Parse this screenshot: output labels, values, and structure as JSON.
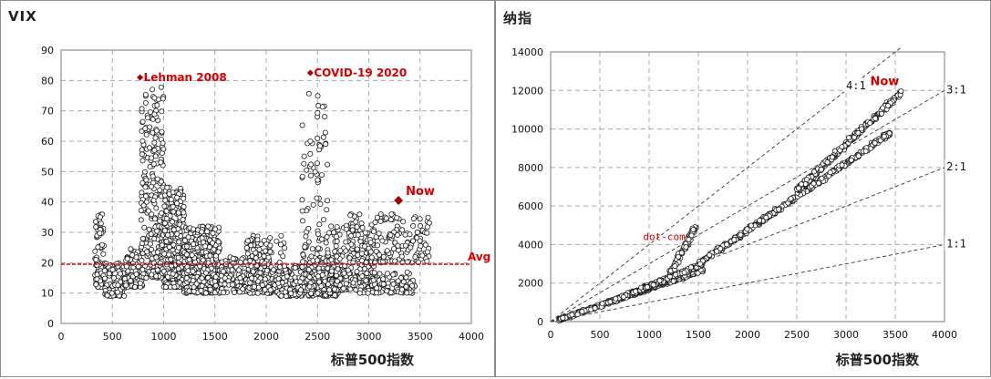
{
  "charts": {
    "vix": {
      "y_title": "VIX",
      "x_title": "标普500指数",
      "annotations": {
        "lehman": "Lehman  2008",
        "covid": "COVID-19  2020",
        "now": "Now",
        "avg": "Avg"
      }
    },
    "nasdaq": {
      "y_title": "纳指",
      "x_title": "标普500指数",
      "annotations": {
        "dotcom": "dot-com",
        "now": "Now",
        "r41": "4:1",
        "r31": "3:1",
        "r21": "2:1",
        "r11": "1:1"
      }
    }
  },
  "chart_data": [
    {
      "type": "scatter",
      "ylabel": "VIX",
      "xlabel": "标普500指数",
      "xlim": [
        0,
        4000
      ],
      "ylim": [
        0,
        90
      ],
      "xticks": [
        0,
        500,
        1000,
        1500,
        2000,
        2500,
        3000,
        3500,
        4000
      ],
      "yticks": [
        0,
        10,
        20,
        30,
        40,
        50,
        60,
        70,
        80,
        90
      ],
      "grid": true,
      "average_line": 19.5,
      "highlights": [
        {
          "label": "Lehman  2008",
          "x": 770,
          "y": 81
        },
        {
          "label": "COVID-19  2020",
          "x": 2430,
          "y": 82.5
        },
        {
          "label": "Now",
          "x": 3290,
          "y": 40.5
        }
      ],
      "clusters": [
        {
          "x": [
            330,
            420
          ],
          "y": [
            12,
            36
          ],
          "n": 90
        },
        {
          "x": [
            420,
            620
          ],
          "y": [
            9,
            20
          ],
          "n": 90
        },
        {
          "x": [
            620,
            800
          ],
          "y": [
            12,
            25
          ],
          "n": 90
        },
        {
          "x": [
            780,
            1000
          ],
          "y": [
            15,
            78
          ],
          "n": 260
        },
        {
          "x": [
            1000,
            1200
          ],
          "y": [
            12,
            45
          ],
          "n": 320
        },
        {
          "x": [
            1200,
            1550
          ],
          "y": [
            10,
            32
          ],
          "n": 380
        },
        {
          "x": [
            1550,
            2050
          ],
          "y": [
            10,
            22
          ],
          "n": 220
        },
        {
          "x": [
            1800,
            2200
          ],
          "y": [
            11,
            29
          ],
          "n": 150
        },
        {
          "x": [
            2100,
            2450
          ],
          "y": [
            9,
            19
          ],
          "n": 160
        },
        {
          "x": [
            2400,
            2700
          ],
          "y": [
            9,
            22
          ],
          "n": 160
        },
        {
          "x": [
            2350,
            2600
          ],
          "y": [
            20,
            76
          ],
          "n": 90
        },
        {
          "x": [
            2600,
            3050
          ],
          "y": [
            11,
            33
          ],
          "n": 200
        },
        {
          "x": [
            2900,
            3450
          ],
          "y": [
            10,
            17
          ],
          "n": 120
        },
        {
          "x": [
            2800,
            3600
          ],
          "y": [
            20,
            36
          ],
          "n": 190
        }
      ]
    },
    {
      "type": "scatter",
      "ylabel": "纳指",
      "xlabel": "标普500指数",
      "xlim": [
        0,
        4000
      ],
      "ylim": [
        0,
        14000
      ],
      "xticks": [
        0,
        500,
        1000,
        1500,
        2000,
        2500,
        3000,
        3500,
        4000
      ],
      "yticks": [
        0,
        2000,
        4000,
        6000,
        8000,
        10000,
        12000,
        14000
      ],
      "grid": true,
      "ratio_lines": [
        {
          "label": "4:1",
          "slope": 4
        },
        {
          "label": "3:1",
          "slope": 3
        },
        {
          "label": "2:1",
          "slope": 2
        },
        {
          "label": "1:1",
          "slope": 1
        }
      ],
      "highlights": [
        {
          "label": "dot-com",
          "x": 1420,
          "y": 5000
        },
        {
          "label": "Now",
          "x": 3560,
          "y": 11900
        }
      ],
      "bands": [
        {
          "x": [
            80,
            1560
          ],
          "y0": 90,
          "y1": 2700,
          "n": 360,
          "spread": 130
        },
        {
          "x": [
            650,
            1550
          ],
          "y0": 1100,
          "y1": 3000,
          "n": 240,
          "spread": 160
        },
        {
          "x": [
            1200,
            1480
          ],
          "y0": 2300,
          "y1": 5000,
          "n": 70,
          "spread": 350
        },
        {
          "x": [
            1500,
            3450
          ],
          "y0": 3000,
          "y1": 9800,
          "n": 420,
          "spread": 190
        },
        {
          "x": [
            2500,
            3560
          ],
          "y0": 6800,
          "y1": 11900,
          "n": 260,
          "spread": 240
        }
      ]
    }
  ]
}
